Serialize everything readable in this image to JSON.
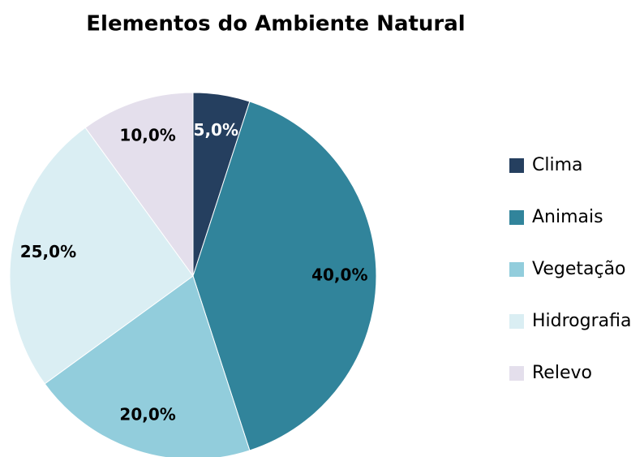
{
  "chart_data": {
    "type": "pie",
    "title": "Elementos do Ambiente Natural",
    "categories": [
      "Clima",
      "Animais",
      "Vegetação",
      "Hidrografia",
      "Relevo"
    ],
    "values": [
      5,
      40,
      20,
      25,
      10
    ],
    "value_labels": [
      "5,0%",
      "40,0%",
      "20,0%",
      "25,0%",
      "10,0%"
    ],
    "colors": [
      "#253f5f",
      "#31849b",
      "#92cddc",
      "#daeef3",
      "#e4dfec"
    ],
    "label_colors": [
      "#ffffff",
      "#000000",
      "#000000",
      "#000000",
      "#000000"
    ],
    "legend": "right"
  }
}
